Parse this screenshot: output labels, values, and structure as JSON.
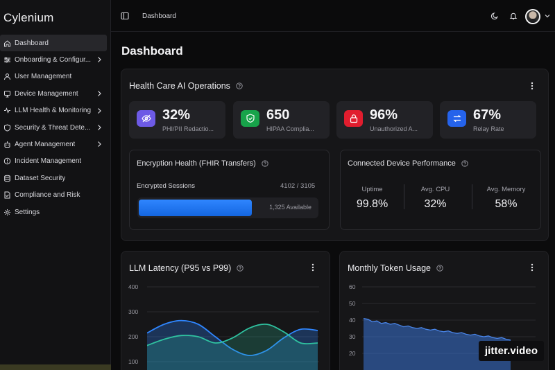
{
  "app": {
    "brand": "Cylenium",
    "breadcrumb": "Dashboard",
    "page_title": "Dashboard"
  },
  "sidebar": {
    "items": [
      {
        "label": "Dashboard",
        "icon": "home-icon",
        "active": true,
        "has_children": false
      },
      {
        "label": "Onboarding & Configur...",
        "icon": "sliders-icon",
        "active": false,
        "has_children": true
      },
      {
        "label": "User Management",
        "icon": "user-icon",
        "active": false,
        "has_children": false
      },
      {
        "label": "Device Management",
        "icon": "device-icon",
        "active": false,
        "has_children": true
      },
      {
        "label": "LLM Health & Monitoring",
        "icon": "pulse-icon",
        "active": false,
        "has_children": true
      },
      {
        "label": "Security & Threat Dete...",
        "icon": "shield-icon",
        "active": false,
        "has_children": true
      },
      {
        "label": "Agent Management",
        "icon": "bot-icon",
        "active": false,
        "has_children": true
      },
      {
        "label": "Incident Management",
        "icon": "alert-icon",
        "active": false,
        "has_children": false
      },
      {
        "label": "Dataset Security",
        "icon": "database-icon",
        "active": false,
        "has_children": false
      },
      {
        "label": "Compliance and Risk",
        "icon": "file-check-icon",
        "active": false,
        "has_children": false
      },
      {
        "label": "Settings",
        "icon": "gear-icon",
        "active": false,
        "has_children": false
      }
    ]
  },
  "operations": {
    "title": "Health Care AI Operations",
    "stats": [
      {
        "value": "32%",
        "label": "PHI/PII Redactio...",
        "icon": "eye-off-icon",
        "color": "#6d5ae6"
      },
      {
        "value": "650",
        "label": "HIPAA Complia...",
        "icon": "shield-check-icon",
        "color": "#17a34a"
      },
      {
        "value": "96%",
        "label": "Unauthorized A...",
        "icon": "lock-icon",
        "color": "#e11d2e"
      },
      {
        "value": "67%",
        "label": "Relay Rate",
        "icon": "swap-icon",
        "color": "#2563eb"
      }
    ],
    "encryption": {
      "title": "Encryption Health (FHIR Transfers)",
      "label": "Encrypted Sessions",
      "count": "4102 / 3105",
      "available": "1,325 Available",
      "fill_fraction": 0.64
    },
    "devices": {
      "title": "Connected Device Performance",
      "metrics": [
        {
          "label": "Uptime",
          "value": "99.8%"
        },
        {
          "label": "Avg. CPU",
          "value": "32%"
        },
        {
          "label": "Avg. Memory",
          "value": "58%"
        }
      ]
    }
  },
  "latency": {
    "title": "LLM Latency (P95 vs P99)",
    "y_ticks": [
      "400",
      "300",
      "200",
      "100"
    ]
  },
  "tokens": {
    "title": "Monthly Token Usage",
    "y_ticks": [
      "60",
      "50",
      "40",
      "30",
      "20"
    ]
  },
  "watermark": "jitter.video",
  "chart_data": [
    {
      "type": "line",
      "title": "LLM Latency (P95 vs P99)",
      "ylim": [
        100,
        400
      ],
      "yticks": [
        100,
        200,
        300,
        400
      ],
      "x": [
        0,
        1,
        2,
        3,
        4,
        5,
        6,
        7,
        8,
        9,
        10
      ],
      "series": [
        {
          "values": [
            215,
            250,
            265,
            250,
            200,
            150,
            125,
            145,
            195,
            230,
            225
          ],
          "color": "#2f86ff"
        },
        {
          "values": [
            165,
            190,
            205,
            200,
            175,
            195,
            235,
            250,
            220,
            175,
            175
          ],
          "color": "#2fc2a0"
        }
      ],
      "grid": true
    },
    {
      "type": "area",
      "title": "Monthly Token Usage",
      "ylim": [
        15,
        60
      ],
      "yticks": [
        20,
        30,
        40,
        50,
        60
      ],
      "values": [
        41,
        40.5,
        39,
        39.5,
        38,
        38.5,
        37.5,
        38,
        37,
        36,
        36.5,
        35.5,
        35,
        35.5,
        34.5,
        34,
        34.5,
        33.5,
        33,
        33.5,
        32.5,
        32,
        32.5,
        31.5,
        31,
        31.5,
        30.5,
        30,
        30.5,
        29.5,
        29,
        29.5,
        28.5,
        28
      ],
      "color": "#3b74d6",
      "grid": true
    }
  ]
}
